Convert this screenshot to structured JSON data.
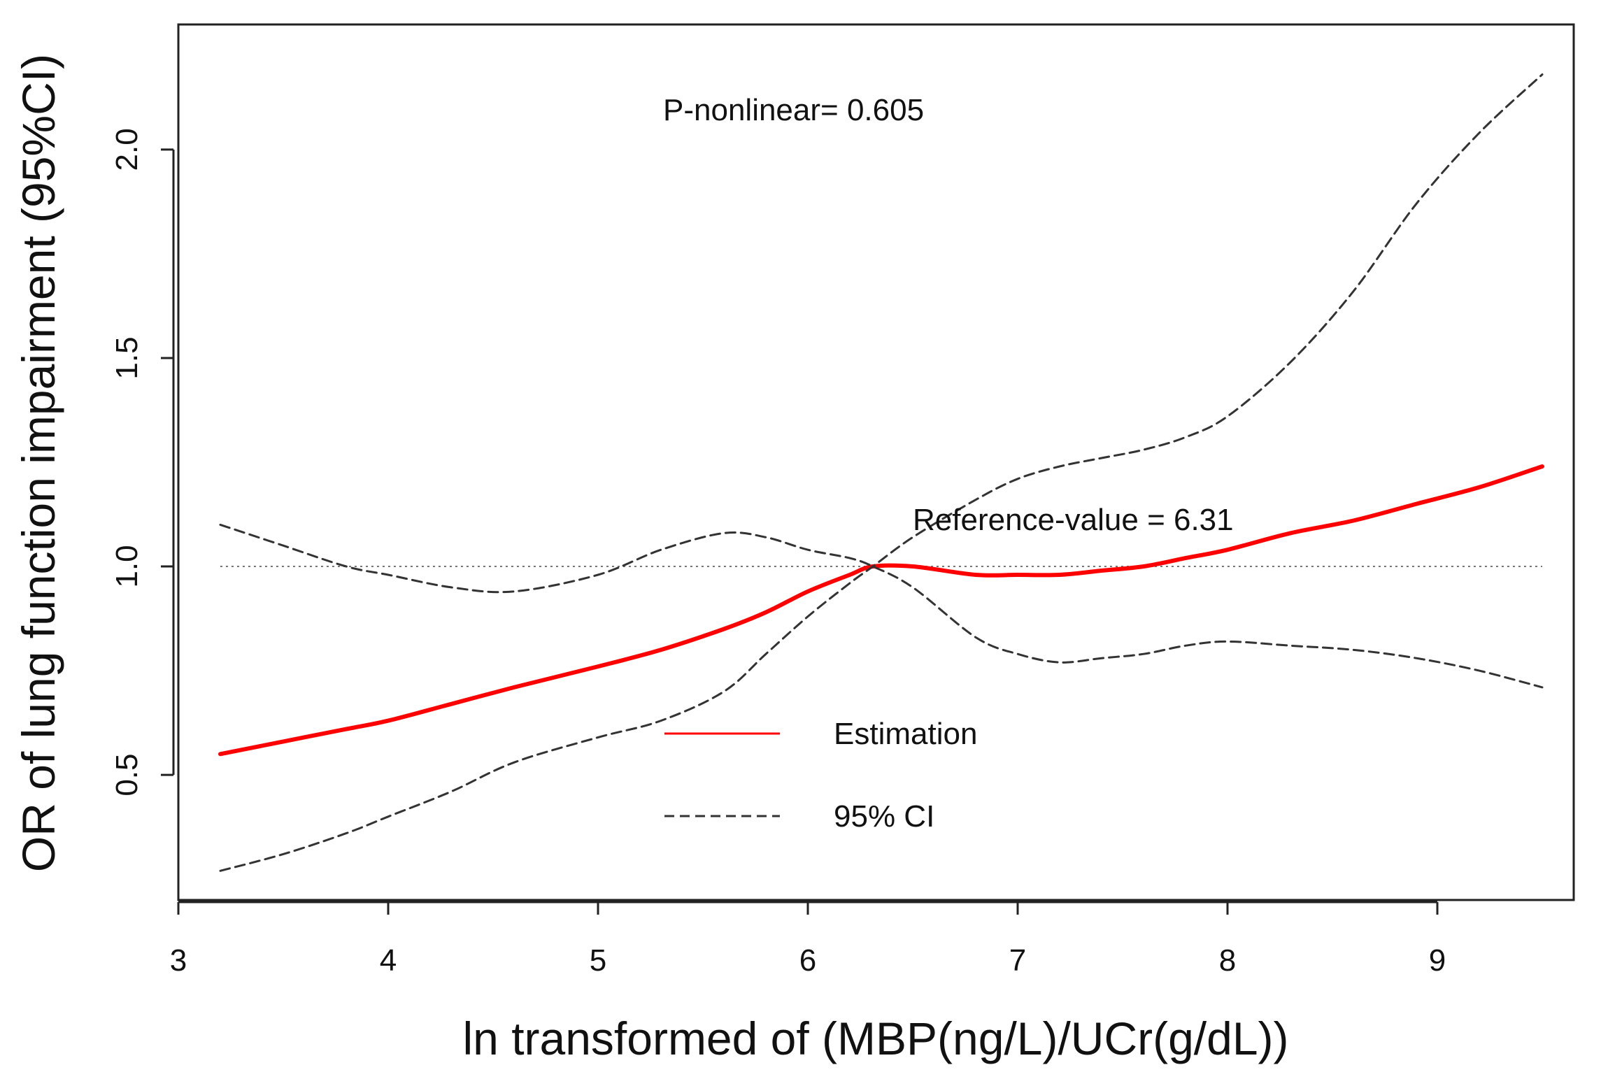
{
  "chart_data": {
    "type": "line",
    "title": "",
    "xlabel": "ln transformed of (MBP(ng/L)/UCr(g/dL))",
    "ylabel": "OR of lung function impairment (95%CI)",
    "xlim": [
      3.0,
      9.65
    ],
    "ylim": [
      0.2,
      2.3
    ],
    "x_ticks": [
      3,
      4,
      5,
      6,
      7,
      8,
      9
    ],
    "x_tick_labels": [
      "3",
      "4",
      "5",
      "6",
      "7",
      "8",
      "9"
    ],
    "y_ticks": [
      0.5,
      1.0,
      1.5,
      2.0
    ],
    "y_tick_labels": [
      "0.5",
      "1.0",
      "1.5",
      "2.0"
    ],
    "grid": false,
    "reference_line": {
      "y": 1.0,
      "style": "dotted",
      "color": "#777777"
    },
    "series": [
      {
        "name": "Estimation",
        "style": "solid",
        "color": "#ff0000",
        "x": [
          3.2,
          3.5,
          3.8,
          4.0,
          4.3,
          4.6,
          5.0,
          5.3,
          5.6,
          5.8,
          6.0,
          6.2,
          6.31,
          6.5,
          6.8,
          7.0,
          7.2,
          7.4,
          7.6,
          7.8,
          8.0,
          8.3,
          8.6,
          8.9,
          9.2,
          9.5
        ],
        "values": [
          0.55,
          0.58,
          0.61,
          0.63,
          0.67,
          0.71,
          0.76,
          0.8,
          0.85,
          0.89,
          0.94,
          0.98,
          1.0,
          1.0,
          0.98,
          0.98,
          0.98,
          0.99,
          1.0,
          1.02,
          1.04,
          1.08,
          1.11,
          1.15,
          1.19,
          1.24
        ]
      },
      {
        "name": "95% CI",
        "style": "dashed",
        "color": "#333333",
        "x": [
          3.2,
          3.5,
          3.8,
          4.0,
          4.3,
          4.6,
          5.0,
          5.3,
          5.6,
          5.8,
          6.0,
          6.2,
          6.31,
          6.5,
          6.8,
          7.0,
          7.2,
          7.4,
          7.6,
          7.8,
          8.0,
          8.3,
          8.6,
          8.9,
          9.2,
          9.5
        ],
        "values": [
          1.1,
          1.05,
          1.0,
          0.98,
          0.95,
          0.94,
          0.98,
          1.04,
          1.08,
          1.07,
          1.04,
          1.02,
          1.0,
          0.95,
          0.83,
          0.79,
          0.77,
          0.78,
          0.79,
          0.81,
          0.82,
          0.81,
          0.8,
          0.78,
          0.75,
          0.71
        ]
      },
      {
        "name": "95% CI",
        "style": "dashed",
        "color": "#333333",
        "x": [
          3.2,
          3.5,
          3.8,
          4.0,
          4.3,
          4.6,
          5.0,
          5.3,
          5.6,
          5.8,
          6.0,
          6.2,
          6.31,
          6.5,
          6.8,
          7.0,
          7.2,
          7.4,
          7.6,
          7.8,
          8.0,
          8.3,
          8.6,
          8.9,
          9.2,
          9.5
        ],
        "values": [
          0.27,
          0.31,
          0.36,
          0.4,
          0.46,
          0.53,
          0.59,
          0.63,
          0.7,
          0.79,
          0.88,
          0.96,
          1.0,
          1.07,
          1.16,
          1.21,
          1.24,
          1.26,
          1.28,
          1.31,
          1.36,
          1.49,
          1.66,
          1.87,
          2.04,
          2.18
        ]
      }
    ],
    "annotations": {
      "p_nonlinear": "P-nonlinear= 0.605",
      "reference_value": "Reference-value = 6.31"
    },
    "legend": {
      "position": "bottom-center",
      "entries": [
        {
          "label": "Estimation",
          "style": "solid",
          "color": "#ff0000"
        },
        {
          "label": "95% CI",
          "style": "dashed",
          "color": "#333333"
        }
      ]
    }
  }
}
